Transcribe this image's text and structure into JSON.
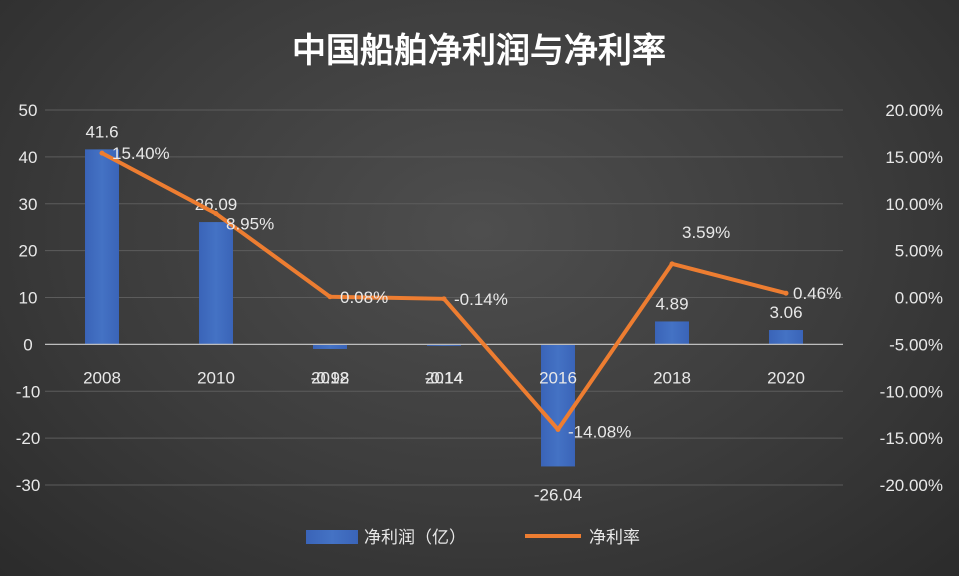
{
  "chart_data": {
    "type": "bar",
    "title": "中国船舶净利润与净利率",
    "categories": [
      "2008",
      "2010",
      "2012",
      "2014",
      "2016",
      "2018",
      "2020"
    ],
    "series": [
      {
        "name": "净利润（亿）",
        "type": "bar",
        "axis": "left",
        "color": "#4472C4",
        "values": [
          41.6,
          26.09,
          -0.98,
          -0.14,
          -26.04,
          4.89,
          3.06
        ],
        "labels": [
          "41.6",
          "26.09",
          "-0.98",
          "-0.14",
          "-26.04",
          "4.89",
          "3.06"
        ]
      },
      {
        "name": "净利率",
        "type": "line",
        "axis": "right",
        "color": "#ED7D31",
        "values": [
          15.4,
          8.95,
          0.08,
          -0.14,
          -14.08,
          3.59,
          0.46
        ],
        "labels": [
          "15.40%",
          "8.95%",
          "0.08%",
          "-0.14%",
          "-14.08%",
          "3.59%",
          "0.46%"
        ]
      }
    ],
    "y_left": {
      "min": -30,
      "max": 50,
      "ticks": [
        "50",
        "40",
        "30",
        "20",
        "10",
        "0",
        "-10",
        "-20",
        "-30"
      ]
    },
    "y_right": {
      "min": -20,
      "max": 20,
      "ticks": [
        "20.00%",
        "15.00%",
        "10.00%",
        "5.00%",
        "0.00%",
        "-5.00%",
        "-10.00%",
        "-15.00%",
        "-20.00%"
      ]
    },
    "grid": true,
    "legend_position": "bottom"
  }
}
